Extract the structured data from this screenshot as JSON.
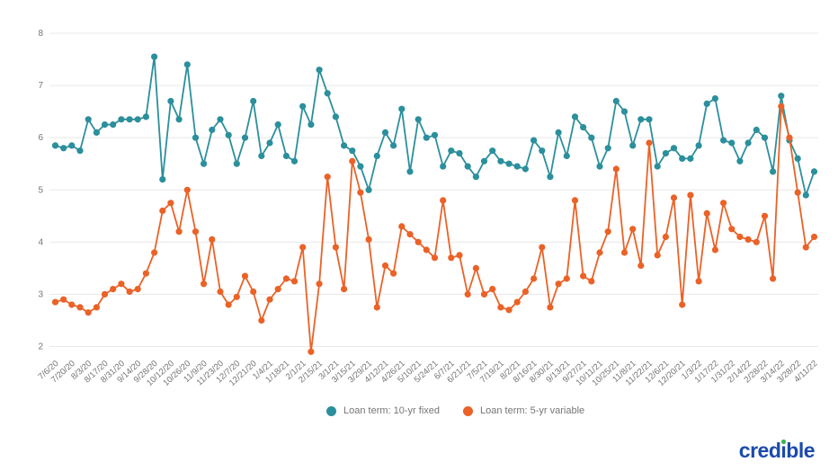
{
  "page": {
    "background_color": "#ffffff"
  },
  "chart_data": {
    "type": "line",
    "title": "",
    "xlabel": "",
    "ylabel": "",
    "ylim": [
      2,
      8
    ],
    "yticks": [
      2,
      3,
      4,
      5,
      6,
      7,
      8
    ],
    "grid": "horizontal",
    "legend_position": "bottom-center",
    "x_tick_every": 2,
    "x_tick_labels": [
      "7/6/20",
      "7/20/20",
      "8/3/20",
      "8/17/20",
      "8/31/20",
      "9/14/20",
      "9/28/20",
      "10/12/20",
      "10/26/20",
      "11/9/20",
      "11/23/20",
      "12/7/20",
      "12/21/20",
      "1/4/21",
      "1/18/21",
      "2/1/21",
      "2/15/21",
      "3/1/21",
      "3/15/21",
      "3/29/21",
      "4/12/21",
      "4/26/21",
      "5/10/21",
      "5/24/21",
      "6/7/21",
      "6/21/21",
      "7/5/21",
      "7/19/21",
      "8/2/21",
      "8/16/21",
      "8/30/21",
      "9/13/21",
      "9/27/21",
      "10/11/21",
      "10/25/21",
      "11/8/21",
      "11/22/21",
      "12/6/21",
      "12/20/21",
      "1/3/22",
      "1/17/22",
      "1/31/22",
      "2/14/22",
      "2/28/22",
      "3/14/22",
      "3/28/22",
      "4/11/22"
    ],
    "series": [
      {
        "name": "Loan term: 10-yr fixed",
        "color": "#2b8f9c",
        "values": [
          5.85,
          5.8,
          5.85,
          5.75,
          6.35,
          6.1,
          6.25,
          6.25,
          6.35,
          6.35,
          6.35,
          6.4,
          7.55,
          5.2,
          6.7,
          6.35,
          7.4,
          6.0,
          5.5,
          6.15,
          6.35,
          6.05,
          5.5,
          6.0,
          6.7,
          5.65,
          5.9,
          6.25,
          5.65,
          5.55,
          6.6,
          6.25,
          7.3,
          6.85,
          6.4,
          5.85,
          5.75,
          5.45,
          5.0,
          5.65,
          6.1,
          5.85,
          6.55,
          5.35,
          6.35,
          6.0,
          6.05,
          5.45,
          5.75,
          5.7,
          5.45,
          5.25,
          5.55,
          5.75,
          5.55,
          5.5,
          5.45,
          5.4,
          5.95,
          5.75,
          5.25,
          6.1,
          5.65,
          6.4,
          6.2,
          6.0,
          5.45,
          5.8,
          6.7,
          6.5,
          5.85,
          6.35,
          6.35,
          5.45,
          5.7,
          5.8,
          5.6,
          5.6,
          5.85,
          6.65,
          6.75,
          5.95,
          5.9,
          5.55,
          5.9,
          6.15,
          6.0,
          5.35,
          6.8,
          5.95,
          5.6,
          4.9,
          5.35
        ]
      },
      {
        "name": "Loan term: 5-yr variable",
        "color": "#ea6227",
        "values": [
          2.85,
          2.9,
          2.8,
          2.75,
          2.65,
          2.75,
          3.0,
          3.1,
          3.2,
          3.05,
          3.1,
          3.4,
          3.8,
          4.6,
          4.75,
          4.2,
          5.0,
          4.2,
          3.2,
          4.05,
          3.05,
          2.8,
          2.95,
          3.35,
          3.05,
          2.5,
          2.9,
          3.1,
          3.3,
          3.25,
          3.9,
          1.9,
          3.2,
          5.25,
          3.9,
          3.1,
          5.55,
          4.95,
          4.05,
          2.75,
          3.55,
          3.4,
          4.3,
          4.15,
          4.0,
          3.85,
          3.7,
          4.8,
          3.7,
          3.75,
          3.0,
          3.5,
          3.0,
          3.1,
          2.75,
          2.7,
          2.85,
          3.05,
          3.3,
          3.9,
          2.75,
          3.2,
          3.3,
          4.8,
          3.35,
          3.25,
          3.8,
          4.2,
          5.4,
          3.8,
          4.25,
          3.55,
          5.9,
          3.75,
          4.1,
          4.85,
          2.8,
          4.9,
          3.25,
          4.55,
          3.85,
          4.75,
          4.25,
          4.1,
          4.05,
          4.0,
          4.5,
          3.3,
          6.6,
          6.0,
          4.95,
          3.9,
          4.1
        ]
      }
    ]
  },
  "legend": {
    "items": [
      {
        "label": "Loan term: 10-yr fixed",
        "color": "#2b8f9c"
      },
      {
        "label": "Loan term: 5-yr variable",
        "color": "#ea6227"
      }
    ]
  },
  "logo": {
    "full_text": "credible",
    "word_start": "cred",
    "letter_i_dotless": "ı",
    "word_end": "ble",
    "text_color": "#1b4aad",
    "dot_color": "#3eb54b"
  }
}
